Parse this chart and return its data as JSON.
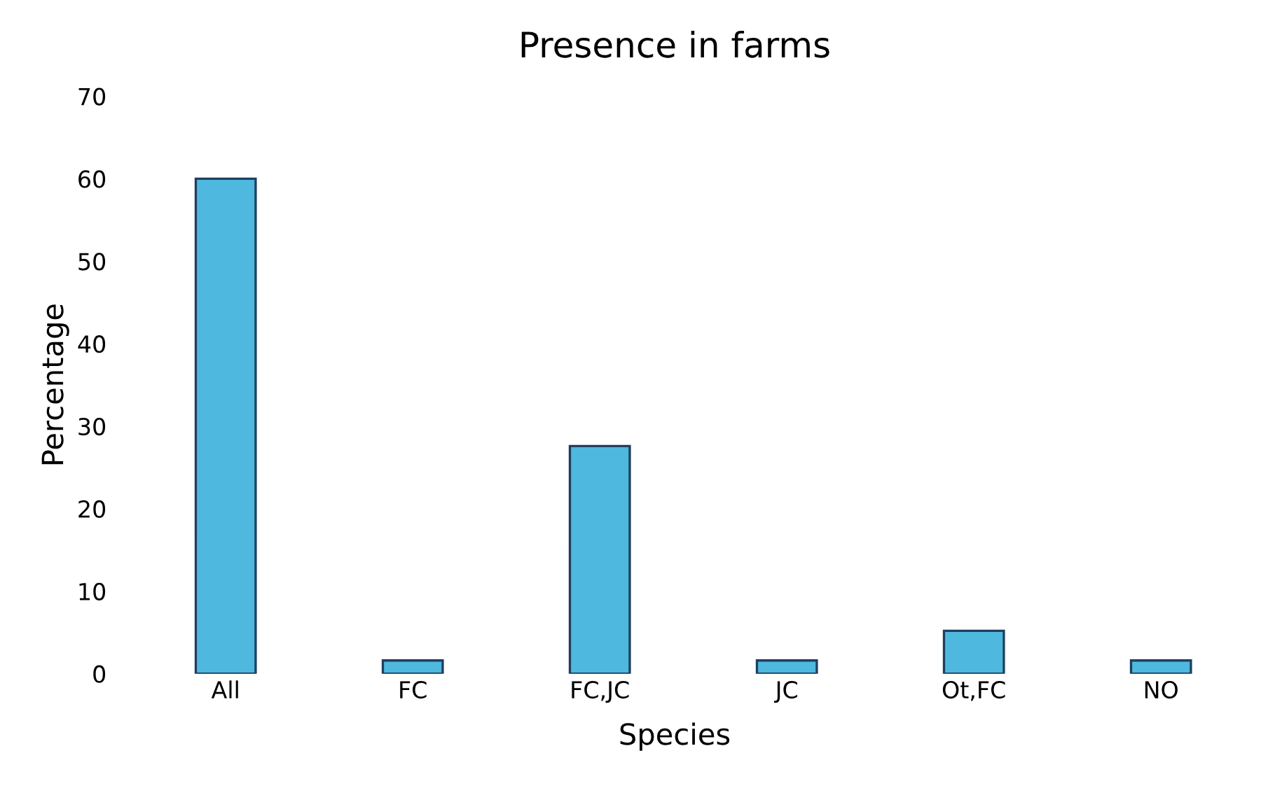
{
  "chart_data": {
    "type": "bar",
    "title": "Presence in farms",
    "xlabel": "Species",
    "ylabel": "Percentage",
    "categories": [
      "All",
      "FC",
      "FC,JC",
      "JC",
      "Ot,FC",
      "NO"
    ],
    "values": [
      60,
      1.6,
      27.6,
      1.6,
      5.2,
      1.6
    ],
    "color": "#4fb8de",
    "ylim": [
      0,
      70
    ],
    "yticks": [
      0,
      10,
      20,
      30,
      40,
      50,
      60,
      70
    ],
    "grid": false
  }
}
